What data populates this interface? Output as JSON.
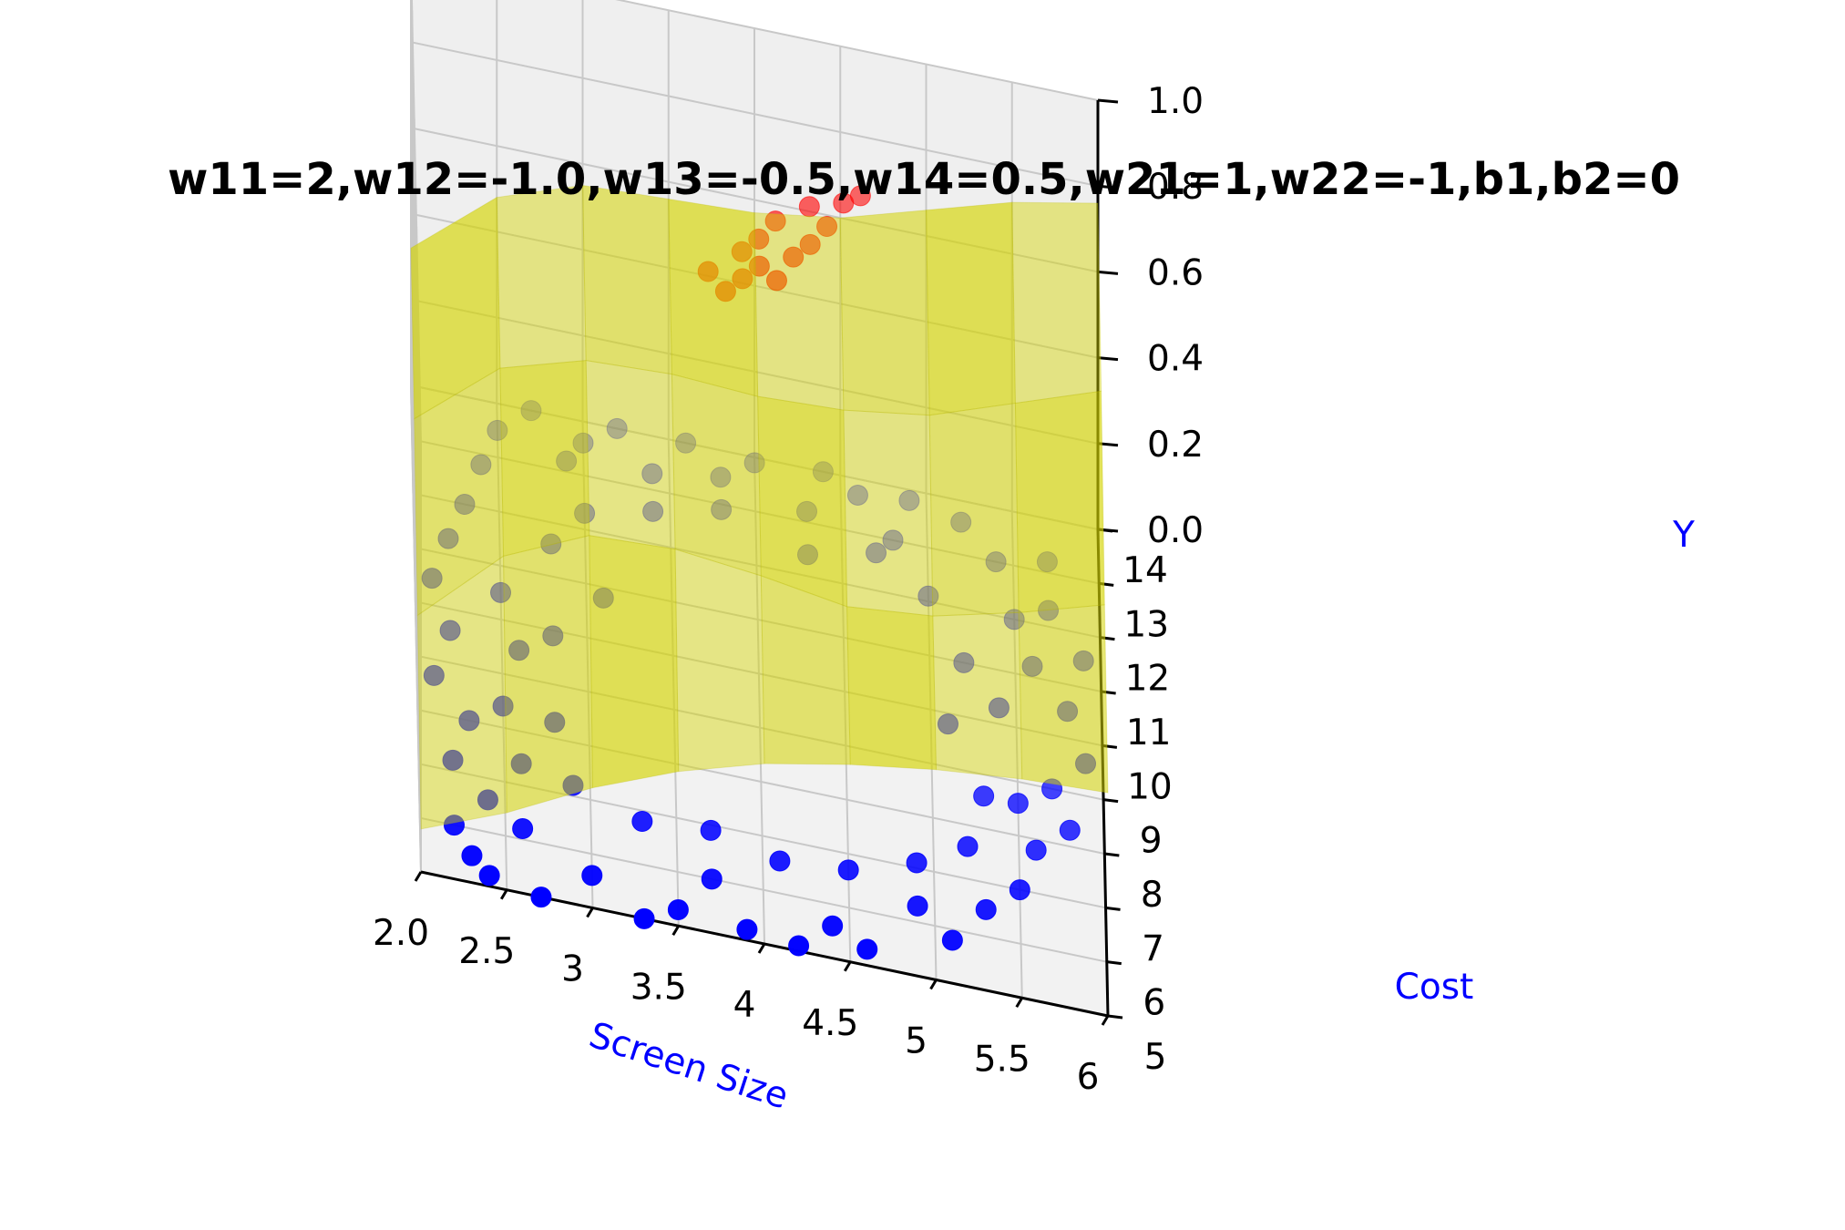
{
  "chart_data": {
    "type": "scatter",
    "projection": "3d",
    "title": "w11=2,w12=-1.0,w13=-0.5,w14=0.5,w21=1,w22=-1,b1,b2=0",
    "xlabel": "Screen Size",
    "ylabel": "Cost",
    "zlabel": "Y",
    "xlim": [
      2.0,
      6.0
    ],
    "ylim": [
      5,
      14
    ],
    "zlim": [
      0.0,
      1.0
    ],
    "x_ticks": [
      "2.0",
      "2.5",
      "3",
      "3.5",
      "4",
      "4.5",
      "5",
      "5.5",
      "6"
    ],
    "y_ticks": [
      "5",
      "6",
      "7",
      "8",
      "9",
      "10",
      "11",
      "12",
      "13",
      "14"
    ],
    "z_ticks": [
      "0.0",
      "0.2",
      "0.4",
      "0.6",
      "0.8",
      "1.0"
    ],
    "grid": true,
    "colors": {
      "class0": "#0000ff",
      "class1": "#ff0000",
      "surface": "#d4d400",
      "label": "#0000ff"
    },
    "surface": {
      "description_type": "network output surface",
      "z_grid_x": [
        2.0,
        2.5,
        3.0,
        3.5,
        4.0,
        4.5,
        5.0,
        5.5,
        6.0
      ],
      "z_grid_y": [
        5,
        8,
        11,
        14
      ],
      "z_values": [
        [
          0.1,
          0.18,
          0.28,
          0.36,
          0.42,
          0.46,
          0.49,
          0.51,
          0.52
        ],
        [
          0.22,
          0.4,
          0.49,
          0.5,
          0.48,
          0.45,
          0.47,
          0.52,
          0.58
        ],
        [
          0.3,
          0.46,
          0.52,
          0.53,
          0.52,
          0.53,
          0.56,
          0.63,
          0.7
        ],
        [
          0.32,
          0.48,
          0.55,
          0.56,
          0.57,
          0.6,
          0.66,
          0.72,
          0.76
        ]
      ]
    },
    "series": [
      {
        "class": 0,
        "marker_color": "#0000ff",
        "points": [
          [
            2.3,
            5.5,
            0
          ],
          [
            2.2,
            6.0,
            0
          ],
          [
            2.4,
            5.2,
            0
          ],
          [
            2.7,
            5.0,
            0
          ],
          [
            2.6,
            6.2,
            0
          ],
          [
            3.0,
            5.6,
            0
          ],
          [
            3.3,
            5.0,
            0
          ],
          [
            3.5,
            5.3,
            0
          ],
          [
            3.7,
            6.0,
            0
          ],
          [
            3.9,
            5.2,
            0
          ],
          [
            4.2,
            5.1,
            0
          ],
          [
            4.4,
            5.6,
            0
          ],
          [
            4.6,
            5.3,
            0
          ],
          [
            4.9,
            6.3,
            0
          ],
          [
            5.1,
            5.8,
            0
          ],
          [
            5.3,
            6.5,
            0
          ],
          [
            5.5,
            7.0,
            0
          ],
          [
            5.6,
            7.8,
            0
          ],
          [
            5.8,
            8.3,
            0
          ],
          [
            5.7,
            9.0,
            0
          ],
          [
            5.9,
            9.6,
            0
          ],
          [
            5.5,
            8.6,
            0
          ],
          [
            5.8,
            10.5,
            0
          ],
          [
            5.9,
            11.5,
            0
          ],
          [
            5.6,
            11.2,
            0
          ],
          [
            5.7,
            12.3,
            0
          ],
          [
            5.5,
            12.0,
            0
          ],
          [
            5.4,
            13.0,
            0
          ],
          [
            5.7,
            13.2,
            0
          ],
          [
            5.2,
            13.6,
            0
          ],
          [
            4.9,
            13.8,
            0
          ],
          [
            4.6,
            13.7,
            0
          ],
          [
            4.4,
            14.0,
            0
          ],
          [
            4.3,
            13.2,
            0
          ],
          [
            4.0,
            13.9,
            0
          ],
          [
            3.8,
            13.5,
            0
          ],
          [
            3.6,
            14.0,
            0
          ],
          [
            3.4,
            13.3,
            0
          ],
          [
            3.2,
            14.0,
            0
          ],
          [
            3.0,
            13.6,
            0
          ],
          [
            2.9,
            13.2,
            0
          ],
          [
            2.7,
            14.0,
            0
          ],
          [
            2.5,
            13.5,
            0
          ],
          [
            2.4,
            12.8,
            0
          ],
          [
            2.3,
            12.0,
            0
          ],
          [
            2.2,
            11.3,
            0
          ],
          [
            2.1,
            10.5,
            0
          ],
          [
            2.2,
            9.6,
            0
          ],
          [
            2.1,
            8.7,
            0
          ],
          [
            2.3,
            8.0,
            0
          ],
          [
            2.2,
            7.2,
            0
          ],
          [
            2.4,
            6.6,
            0
          ],
          [
            2.6,
            7.4,
            0
          ],
          [
            2.5,
            8.4,
            0
          ],
          [
            2.6,
            9.5,
            0
          ],
          [
            2.5,
            10.5,
            0
          ],
          [
            2.8,
            11.6,
            0
          ],
          [
            3.0,
            12.3,
            0
          ],
          [
            3.4,
            12.6,
            0
          ],
          [
            3.8,
            12.9,
            0
          ],
          [
            4.3,
            12.4,
            0
          ],
          [
            4.7,
            12.7,
            0
          ],
          [
            5.0,
            12.1,
            0
          ],
          [
            5.2,
            11.0,
            0
          ],
          [
            5.1,
            9.8,
            0
          ],
          [
            5.3,
            8.6,
            0
          ],
          [
            5.2,
            7.6,
            0
          ],
          [
            4.9,
            7.1,
            0
          ],
          [
            4.5,
            6.7,
            0
          ],
          [
            4.1,
            6.6,
            0
          ],
          [
            3.7,
            6.9,
            0
          ],
          [
            3.3,
            6.8,
            0
          ],
          [
            2.9,
            7.2,
            0
          ],
          [
            2.8,
            8.3,
            0
          ],
          [
            2.8,
            9.9,
            0
          ],
          [
            4.8,
            13.0,
            0
          ],
          [
            5.4,
            10.3,
            0
          ],
          [
            3.1,
            10.8,
            0
          ]
        ]
      },
      {
        "class": 1,
        "marker_color": "#ff0000",
        "points": [
          [
            3.8,
            9.0,
            1
          ],
          [
            3.9,
            9.3,
            1
          ],
          [
            4.0,
            9.6,
            1
          ],
          [
            4.1,
            9.4,
            1
          ],
          [
            3.9,
            9.8,
            1
          ],
          [
            4.2,
            9.9,
            1
          ],
          [
            4.0,
            10.1,
            1
          ],
          [
            4.3,
            10.2,
            1
          ],
          [
            4.1,
            10.5,
            1
          ],
          [
            4.4,
            10.6,
            1
          ],
          [
            4.3,
            10.9,
            1
          ],
          [
            4.5,
            11.1,
            1
          ],
          [
            4.6,
            11.3,
            1
          ],
          [
            3.7,
            9.3,
            1
          ]
        ]
      }
    ]
  }
}
